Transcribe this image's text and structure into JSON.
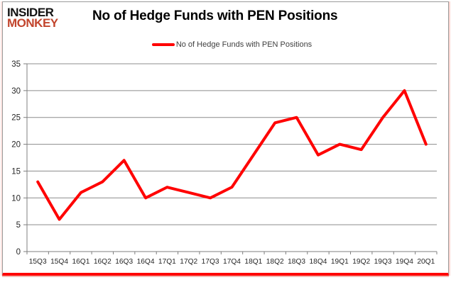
{
  "logo": {
    "line1": "INSIDER",
    "line2": "MONKEY"
  },
  "header": {
    "title": "No of Hedge Funds with PEN Positions"
  },
  "legend": {
    "label": "No of Hedge Funds with PEN Positions"
  },
  "chart_data": {
    "type": "line",
    "title": "No of Hedge Funds with PEN Positions",
    "categories": [
      "15Q3",
      "15Q4",
      "16Q1",
      "16Q2",
      "16Q3",
      "16Q4",
      "17Q1",
      "17Q2",
      "17Q3",
      "17Q4",
      "18Q1",
      "18Q2",
      "18Q3",
      "18Q4",
      "19Q1",
      "19Q2",
      "19Q3",
      "19Q4",
      "20Q1"
    ],
    "series": [
      {
        "name": "No of Hedge Funds with PEN Positions",
        "values": [
          13,
          6,
          11,
          13,
          17,
          10,
          12,
          11,
          10,
          12,
          18,
          24,
          25,
          18,
          20,
          19,
          25,
          30,
          20
        ]
      }
    ],
    "xlabel": "",
    "ylabel": "",
    "ylim": [
      0,
      35
    ],
    "y_ticks": [
      0,
      5,
      10,
      15,
      20,
      25,
      30,
      35
    ],
    "grid": true,
    "legend_position": "top"
  },
  "colors": {
    "line": "#ff0000",
    "logo_red": "#c2452d",
    "grid": "#8c8c8c",
    "axis": "#7f7f7f",
    "axis_text": "#262626",
    "bottom_bar": "#ff0000",
    "frame_border": "#9a9a9a"
  }
}
